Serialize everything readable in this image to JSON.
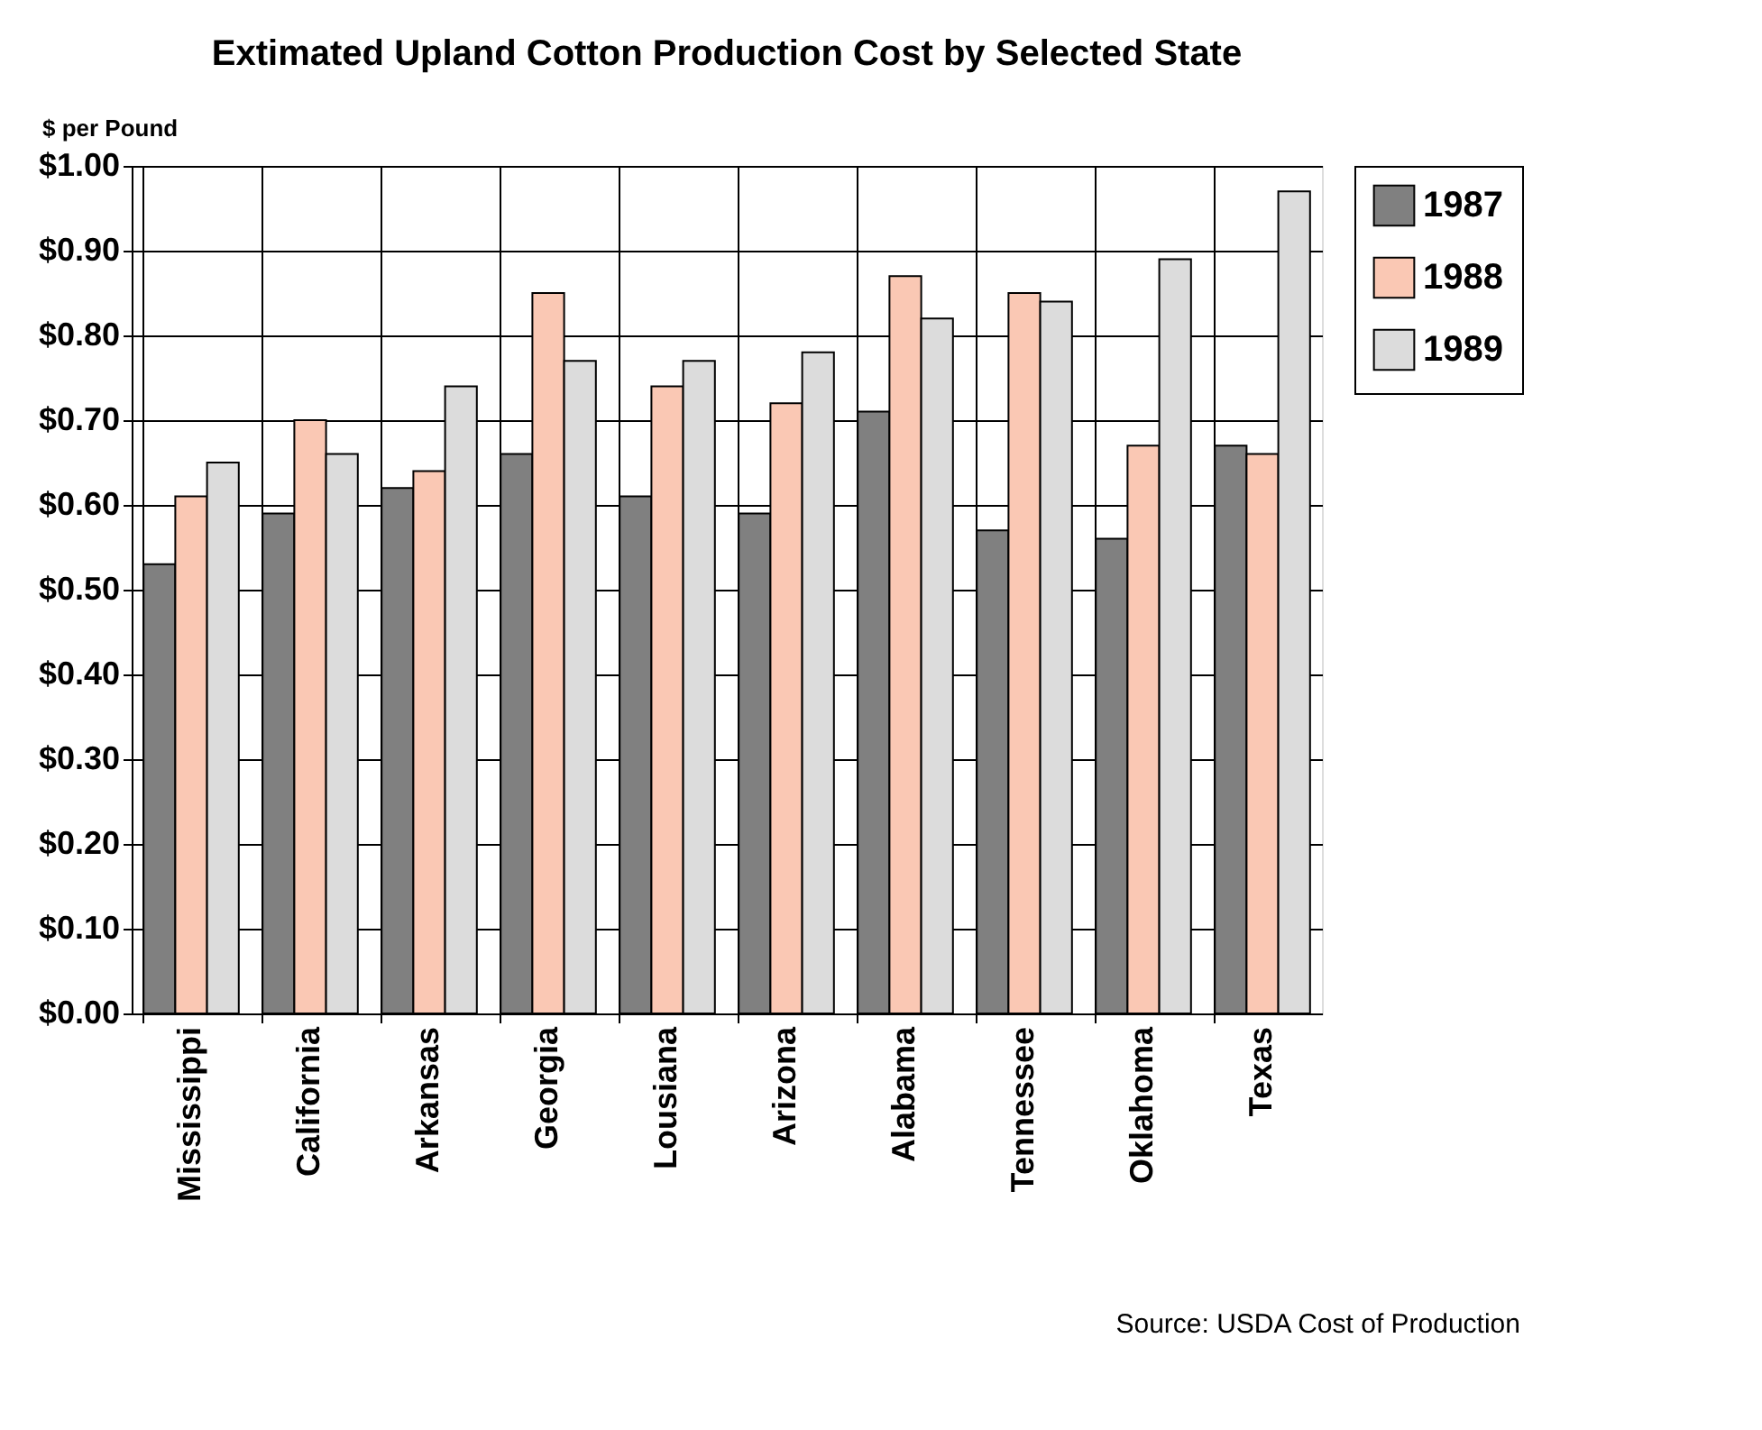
{
  "chart_data": {
    "type": "bar",
    "title": "Extimated Upland Cotton Production Cost by Selected State",
    "ylabel": "$ per Pound",
    "categories": [
      "Mississippi",
      "California",
      "Arkansas",
      "Georgia",
      "Lousiana",
      "Arizona",
      "Alabama",
      "Tennessee",
      "Oklahoma",
      "Texas"
    ],
    "series": [
      {
        "name": "1987",
        "color": "#808080",
        "values": [
          0.53,
          0.59,
          0.62,
          0.66,
          0.61,
          0.59,
          0.71,
          0.57,
          0.56,
          0.67
        ]
      },
      {
        "name": "1988",
        "color": "#fac8b4",
        "values": [
          0.61,
          0.7,
          0.64,
          0.85,
          0.74,
          0.72,
          0.87,
          0.85,
          0.67,
          0.66
        ]
      },
      {
        "name": "1989",
        "color": "#dcdcdc",
        "values": [
          0.65,
          0.66,
          0.74,
          0.77,
          0.77,
          0.78,
          0.82,
          0.84,
          0.89,
          0.97
        ]
      }
    ],
    "ylim": [
      0,
      1.0
    ],
    "yticks": [
      {
        "value": 0,
        "label": "$0.00"
      },
      {
        "value": 0.1,
        "label": "$0.10"
      },
      {
        "value": 0.2,
        "label": "$0.20"
      },
      {
        "value": 0.3,
        "label": "$0.30"
      },
      {
        "value": 0.4,
        "label": "$0.40"
      },
      {
        "value": 0.5,
        "label": "$0.50"
      },
      {
        "value": 0.6,
        "label": "$0.60"
      },
      {
        "value": 0.7,
        "label": "$0.70"
      },
      {
        "value": 0.8,
        "label": "$0.80"
      },
      {
        "value": 0.9,
        "label": "$0.90"
      },
      {
        "value": 1.0,
        "label": "$1.00"
      }
    ],
    "grid": true,
    "legend": "right",
    "annotations": [
      "Source: USDA Cost of  Production"
    ]
  }
}
